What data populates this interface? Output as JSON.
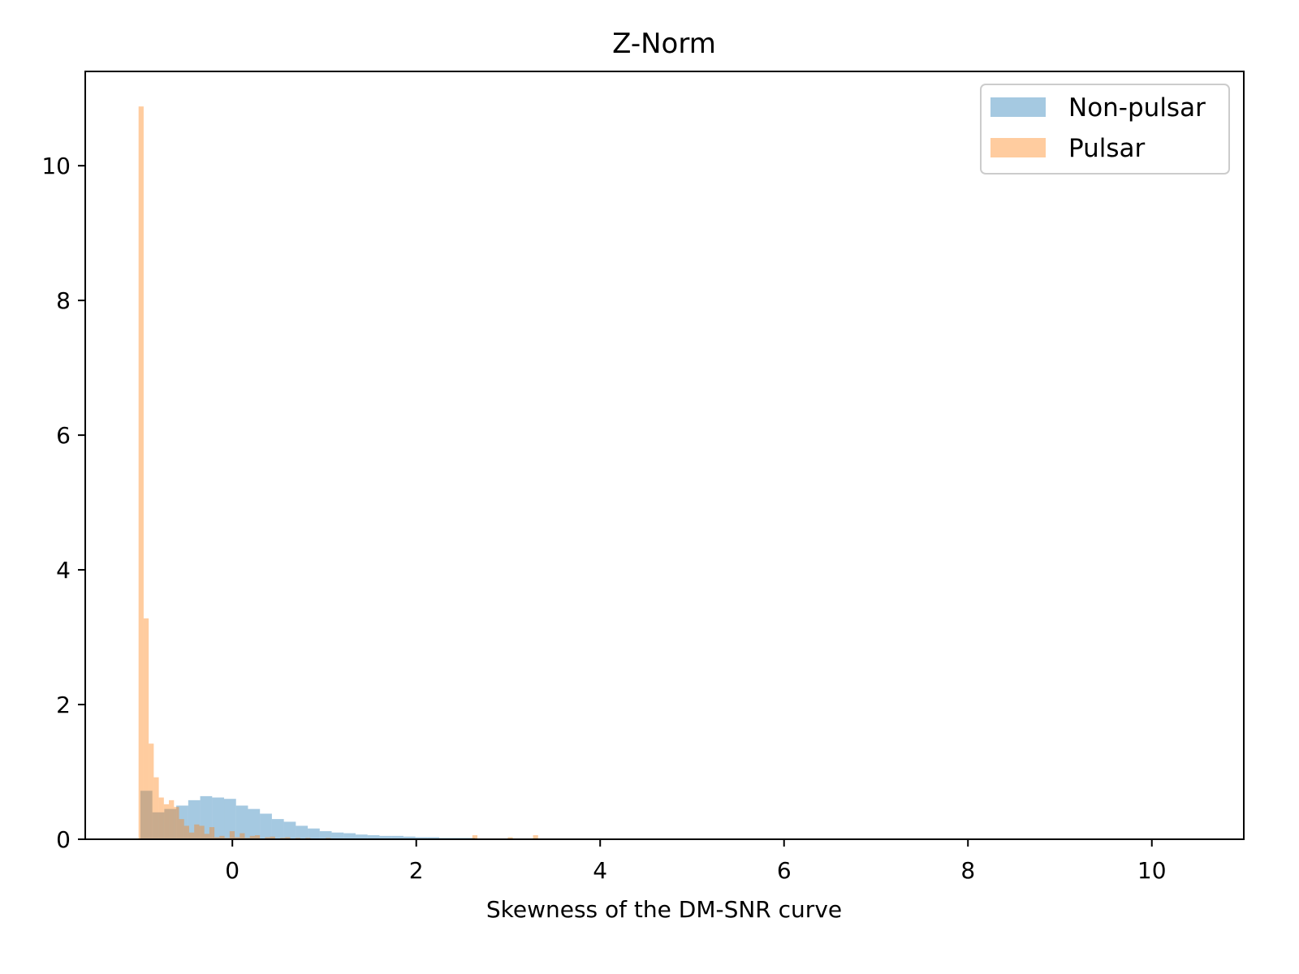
{
  "chart_data": {
    "type": "bar",
    "title": "Z-Norm",
    "xlabel": "Skewness of the DM-SNR curve",
    "ylabel": "",
    "xlim": [
      -1.6,
      11.0
    ],
    "ylim": [
      0,
      11.4
    ],
    "x_ticks": [
      0,
      2,
      4,
      6,
      8,
      10
    ],
    "y_ticks": [
      0,
      2,
      4,
      6,
      8,
      10
    ],
    "x_tick_labels": [
      "0",
      "2",
      "4",
      "6",
      "8",
      "10"
    ],
    "y_tick_labels": [
      "0",
      "2",
      "4",
      "6",
      "8",
      "10"
    ],
    "legend": {
      "position": "top-right",
      "entries": [
        "Non-pulsar",
        "Pulsar"
      ]
    },
    "series": [
      {
        "name": "Non-pulsar",
        "color": "#1f77b4",
        "opacity": 0.4,
        "bin_width": 0.13,
        "bin_starts": [
          -1.0,
          -0.87,
          -0.74,
          -0.61,
          -0.48,
          -0.35,
          -0.22,
          -0.09,
          0.04,
          0.17,
          0.3,
          0.43,
          0.56,
          0.69,
          0.82,
          0.95,
          1.08,
          1.21,
          1.34,
          1.47,
          1.6,
          1.73,
          1.86,
          1.99,
          2.12,
          2.25,
          2.38,
          2.51,
          2.64,
          2.77,
          2.9
        ],
        "values": [
          0.72,
          0.4,
          0.45,
          0.5,
          0.58,
          0.64,
          0.62,
          0.6,
          0.5,
          0.45,
          0.38,
          0.3,
          0.26,
          0.2,
          0.16,
          0.12,
          0.1,
          0.09,
          0.07,
          0.06,
          0.05,
          0.05,
          0.04,
          0.03,
          0.03,
          0.02,
          0.02,
          0.02,
          0.01,
          0.01,
          0.01
        ]
      },
      {
        "name": "Pulsar",
        "color": "#ff7f0e",
        "opacity": 0.4,
        "bin_width": 0.055,
        "bin_starts": [
          -1.02,
          -0.965,
          -0.91,
          -0.855,
          -0.8,
          -0.745,
          -0.69,
          -0.635,
          -0.58,
          -0.525,
          -0.47,
          -0.415,
          -0.36,
          -0.305,
          -0.25,
          -0.195,
          -0.14,
          -0.085,
          -0.03,
          0.025,
          0.08,
          0.135,
          0.19,
          0.245,
          0.3,
          0.355,
          0.41,
          0.465,
          0.52,
          0.575,
          0.63,
          0.685,
          0.74,
          0.795,
          0.85,
          0.905,
          0.96,
          1.015,
          1.07,
          1.125,
          1.18,
          1.235,
          1.29,
          1.345,
          1.4,
          1.455,
          1.51,
          1.565,
          1.62,
          1.675,
          1.73,
          1.785,
          1.84,
          1.895,
          1.95,
          2.005,
          2.06,
          2.115,
          2.17,
          2.225,
          2.28,
          2.335,
          2.39,
          2.445,
          2.5,
          2.555,
          2.61,
          2.665,
          2.72,
          2.775,
          2.83,
          2.885,
          2.94,
          2.995,
          3.05,
          3.105,
          3.16,
          3.215,
          3.27
        ],
        "values": [
          10.88,
          3.28,
          1.42,
          0.92,
          0.62,
          0.52,
          0.58,
          0.48,
          0.3,
          0.2,
          0.1,
          0.22,
          0.2,
          0.08,
          0.18,
          0.03,
          0.05,
          0.02,
          0.12,
          0.03,
          0.09,
          0.02,
          0.05,
          0.06,
          0.01,
          0.03,
          0.04,
          0.01,
          0.02,
          0.03,
          0.01,
          0.02,
          0.01,
          0.02,
          0.01,
          0.01,
          0.01,
          0.02,
          0.01,
          0.01,
          0.0,
          0.01,
          0.01,
          0.0,
          0.01,
          0.0,
          0.01,
          0.0,
          0.0,
          0.01,
          0.0,
          0.0,
          0.0,
          0.0,
          0.01,
          0.0,
          0.0,
          0.0,
          0.0,
          0.0,
          0.0,
          0.0,
          0.0,
          0.0,
          0.0,
          0.0,
          0.06,
          0.0,
          0.0,
          0.0,
          0.0,
          0.0,
          0.0,
          0.03,
          0.0,
          0.0,
          0.0,
          0.0,
          0.06
        ]
      }
    ]
  }
}
